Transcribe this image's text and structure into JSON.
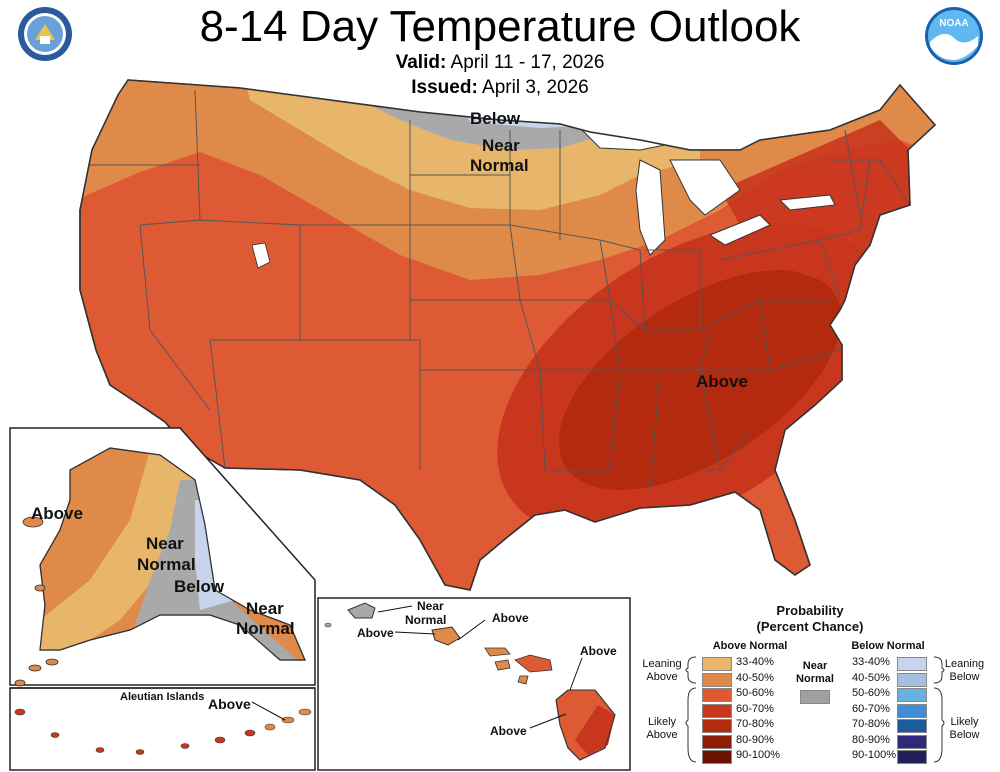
{
  "header": {
    "title": "8-14 Day Temperature Outlook",
    "valid_label": "Valid:",
    "valid_value": "April 11 - 17, 2026",
    "issued_label": "Issued:",
    "issued_value": "April 3, 2026",
    "noaa_logo_text": "NOAA"
  },
  "map_labels": {
    "conus_below": "Below",
    "conus_near_1": "Near",
    "conus_near_2": "Normal",
    "conus_above": "Above",
    "ak_above": "Above",
    "ak_near_1": "Near",
    "ak_near_2": "Normal",
    "ak_below": "Below",
    "ak_se_near_1": "Near",
    "ak_se_near_2": "Normal",
    "aleutian_title": "Aleutian Islands",
    "aleutian_above": "Above",
    "hi_near_1": "Near",
    "hi_near_2": "Normal",
    "hi_above_left": "Above",
    "hi_above_mid": "Above",
    "hi_above_maui": "Above",
    "hi_above_big": "Above"
  },
  "legend": {
    "title_1": "Probability",
    "title_2": "(Percent Chance)",
    "above_header": "Above Normal",
    "below_header": "Below Normal",
    "near_1": "Near",
    "near_2": "Normal",
    "leaning_above_1": "Leaning",
    "leaning_above_2": "Above",
    "likely_above_1": "Likely",
    "likely_above_2": "Above",
    "leaning_below_1": "Leaning",
    "leaning_below_2": "Below",
    "likely_below_1": "Likely",
    "likely_below_2": "Below",
    "ranges": [
      "33-40%",
      "40-50%",
      "50-60%",
      "60-70%",
      "70-80%",
      "80-90%",
      "90-100%"
    ],
    "above_colors": [
      "#e8b66a",
      "#e08a4a",
      "#dd5a34",
      "#c9361e",
      "#b42a0e",
      "#8f1e06",
      "#6a1202"
    ],
    "below_colors": [
      "#c8d4ec",
      "#a7bedf",
      "#6cb0e0",
      "#3f8fd0",
      "#1e5aa0",
      "#2e2a7a",
      "#22205a"
    ],
    "near_color": "#a0a0a0"
  },
  "colors": {
    "above_33_40": "#e8b66a",
    "above_40_50": "#e08a4a",
    "above_50_60": "#dd5a34",
    "above_60_70": "#c9361e",
    "above_70_80": "#b42a0e",
    "near_normal": "#a9a9a9",
    "below_33_40": "#c8d4ec"
  }
}
